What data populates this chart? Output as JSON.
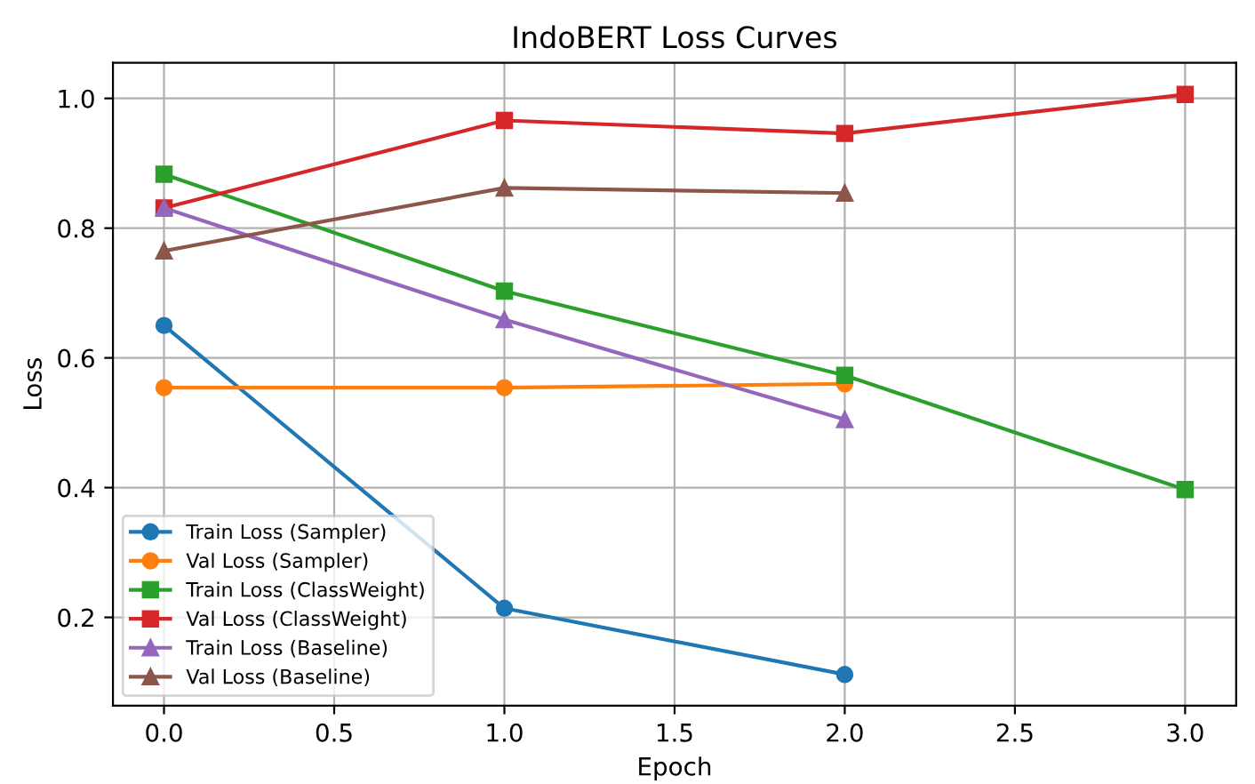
{
  "chart_data": {
    "type": "line",
    "title": "IndoBERT Loss Curves",
    "xlabel": "Epoch",
    "ylabel": "Loss",
    "x": [
      0,
      1,
      2,
      3
    ],
    "series": [
      {
        "name": "Train Loss (Sampler)",
        "color": "#1f77b4",
        "marker": "circle",
        "values": [
          0.65,
          0.214,
          0.112,
          null
        ]
      },
      {
        "name": "Val Loss (Sampler)",
        "color": "#ff7f0e",
        "marker": "circle",
        "values": [
          0.554,
          0.554,
          0.56,
          null
        ]
      },
      {
        "name": "Train Loss (ClassWeight)",
        "color": "#2ca02c",
        "marker": "square",
        "values": [
          0.883,
          0.703,
          0.573,
          0.397
        ]
      },
      {
        "name": "Val Loss (ClassWeight)",
        "color": "#d62728",
        "marker": "square",
        "values": [
          0.831,
          0.966,
          0.946,
          1.006
        ]
      },
      {
        "name": "Train Loss (Baseline)",
        "color": "#9467bd",
        "marker": "triangle",
        "values": [
          0.831,
          0.659,
          0.505,
          null
        ]
      },
      {
        "name": "Val Loss (Baseline)",
        "color": "#8c564b",
        "marker": "triangle",
        "values": [
          0.765,
          0.862,
          0.854,
          null
        ]
      }
    ],
    "xlim": [
      -0.15,
      3.15
    ],
    "ylim": [
      0.064,
      1.055
    ],
    "xticks": [
      {
        "value": 0,
        "label": "0.0"
      },
      0.5,
      {
        "value": 1,
        "label": "1.0"
      },
      1.5,
      {
        "value": 2,
        "label": "2.0"
      },
      2.5,
      {
        "value": 3,
        "label": "3.0"
      }
    ],
    "yticks": [
      0.2,
      0.4,
      0.6,
      0.8,
      {
        "value": 1,
        "label": "1.0"
      }
    ],
    "grid": true,
    "legend": "bottom left"
  }
}
